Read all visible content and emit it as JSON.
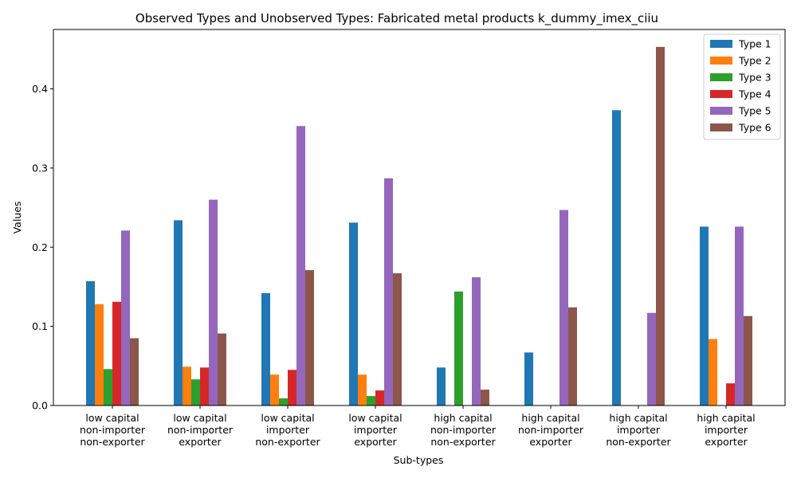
{
  "chart_data": {
    "type": "bar",
    "title": "Observed Types and Unobserved Types: Fabricated metal products k_dummy_imex_ciiu",
    "xlabel": "Sub-types",
    "ylabel": "Values",
    "ylim": [
      0,
      0.475
    ],
    "yticks": [
      0.0,
      0.1,
      0.2,
      0.3,
      0.4
    ],
    "ytick_labels": [
      "0.0",
      "0.1",
      "0.2",
      "0.3",
      "0.4"
    ],
    "grid": false,
    "legend_position": "top-right",
    "categories": [
      [
        "low capital",
        "non-importer",
        "non-exporter"
      ],
      [
        "low capital",
        "non-importer",
        "exporter"
      ],
      [
        "low capital",
        "importer",
        "non-exporter"
      ],
      [
        "low capital",
        "importer",
        "exporter"
      ],
      [
        "high capital",
        "non-importer",
        "non-exporter"
      ],
      [
        "high capital",
        "non-importer",
        "exporter"
      ],
      [
        "high capital",
        "importer",
        "non-exporter"
      ],
      [
        "high capital",
        "importer",
        "exporter"
      ]
    ],
    "series": [
      {
        "name": "Type 1",
        "color": "#1f77b4",
        "values": [
          0.157,
          0.234,
          0.142,
          0.231,
          0.048,
          0.067,
          0.373,
          0.226
        ]
      },
      {
        "name": "Type 2",
        "color": "#ff7f0e",
        "values": [
          0.128,
          0.049,
          0.039,
          0.039,
          0.0,
          0.0,
          0.0,
          0.084
        ]
      },
      {
        "name": "Type 3",
        "color": "#2ca02c",
        "values": [
          0.046,
          0.033,
          0.009,
          0.012,
          0.144,
          0.0,
          0.0,
          0.0
        ]
      },
      {
        "name": "Type 4",
        "color": "#d62728",
        "values": [
          0.131,
          0.048,
          0.045,
          0.019,
          0.0,
          0.0,
          0.0,
          0.028
        ]
      },
      {
        "name": "Type 5",
        "color": "#9467bd",
        "values": [
          0.221,
          0.26,
          0.353,
          0.287,
          0.162,
          0.247,
          0.117,
          0.226
        ]
      },
      {
        "name": "Type 6",
        "color": "#8c564b",
        "values": [
          0.085,
          0.091,
          0.171,
          0.167,
          0.02,
          0.124,
          0.453,
          0.113
        ]
      }
    ]
  }
}
